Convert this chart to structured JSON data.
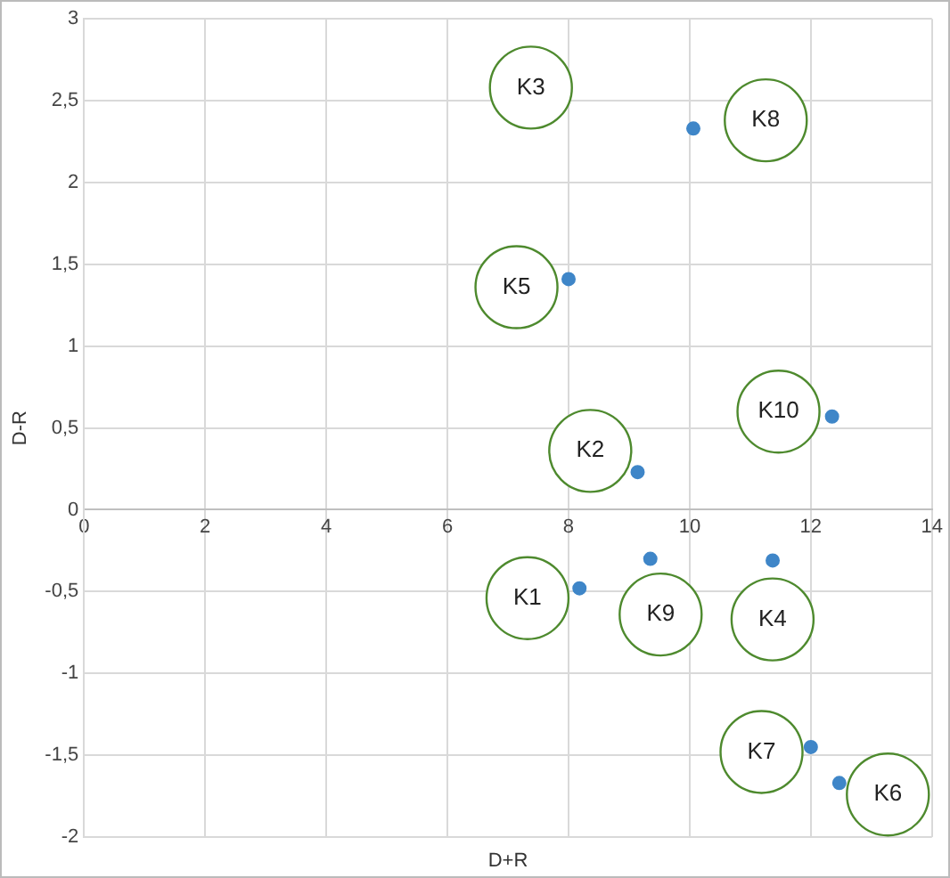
{
  "chart_data": {
    "type": "scatter",
    "xlabel": "D+R",
    "ylabel": "D-R",
    "x": [
      10.06,
      8.0,
      12.35,
      9.14,
      8.18,
      9.35,
      11.37,
      12.0,
      12.47
    ],
    "values": [
      2.33,
      1.41,
      0.57,
      0.23,
      -0.48,
      -0.3,
      -0.31,
      -1.45,
      -1.67
    ],
    "color": "#3f86c8",
    "marker": "circle",
    "grid": true,
    "legend": false,
    "xlim": [
      0,
      14
    ],
    "xticks": [
      0,
      2,
      4,
      6,
      8,
      10,
      12,
      14
    ],
    "ylim": [
      -2,
      3
    ],
    "yticks": [
      -2,
      {
        "value": -1.5,
        "label": "-1,5"
      },
      -1,
      {
        "value": -0.5,
        "label": "-0,5"
      },
      0,
      {
        "value": 0.5,
        "label": "0,5"
      },
      1,
      {
        "value": 1.5,
        "label": "1,5"
      },
      2,
      {
        "value": 2.5,
        "label": "2,5"
      },
      3
    ],
    "annotations": [
      "K3",
      "K8",
      "K5",
      "K10",
      "K2",
      "K1",
      "K9",
      "K4",
      "K7",
      "K6"
    ]
  }
}
